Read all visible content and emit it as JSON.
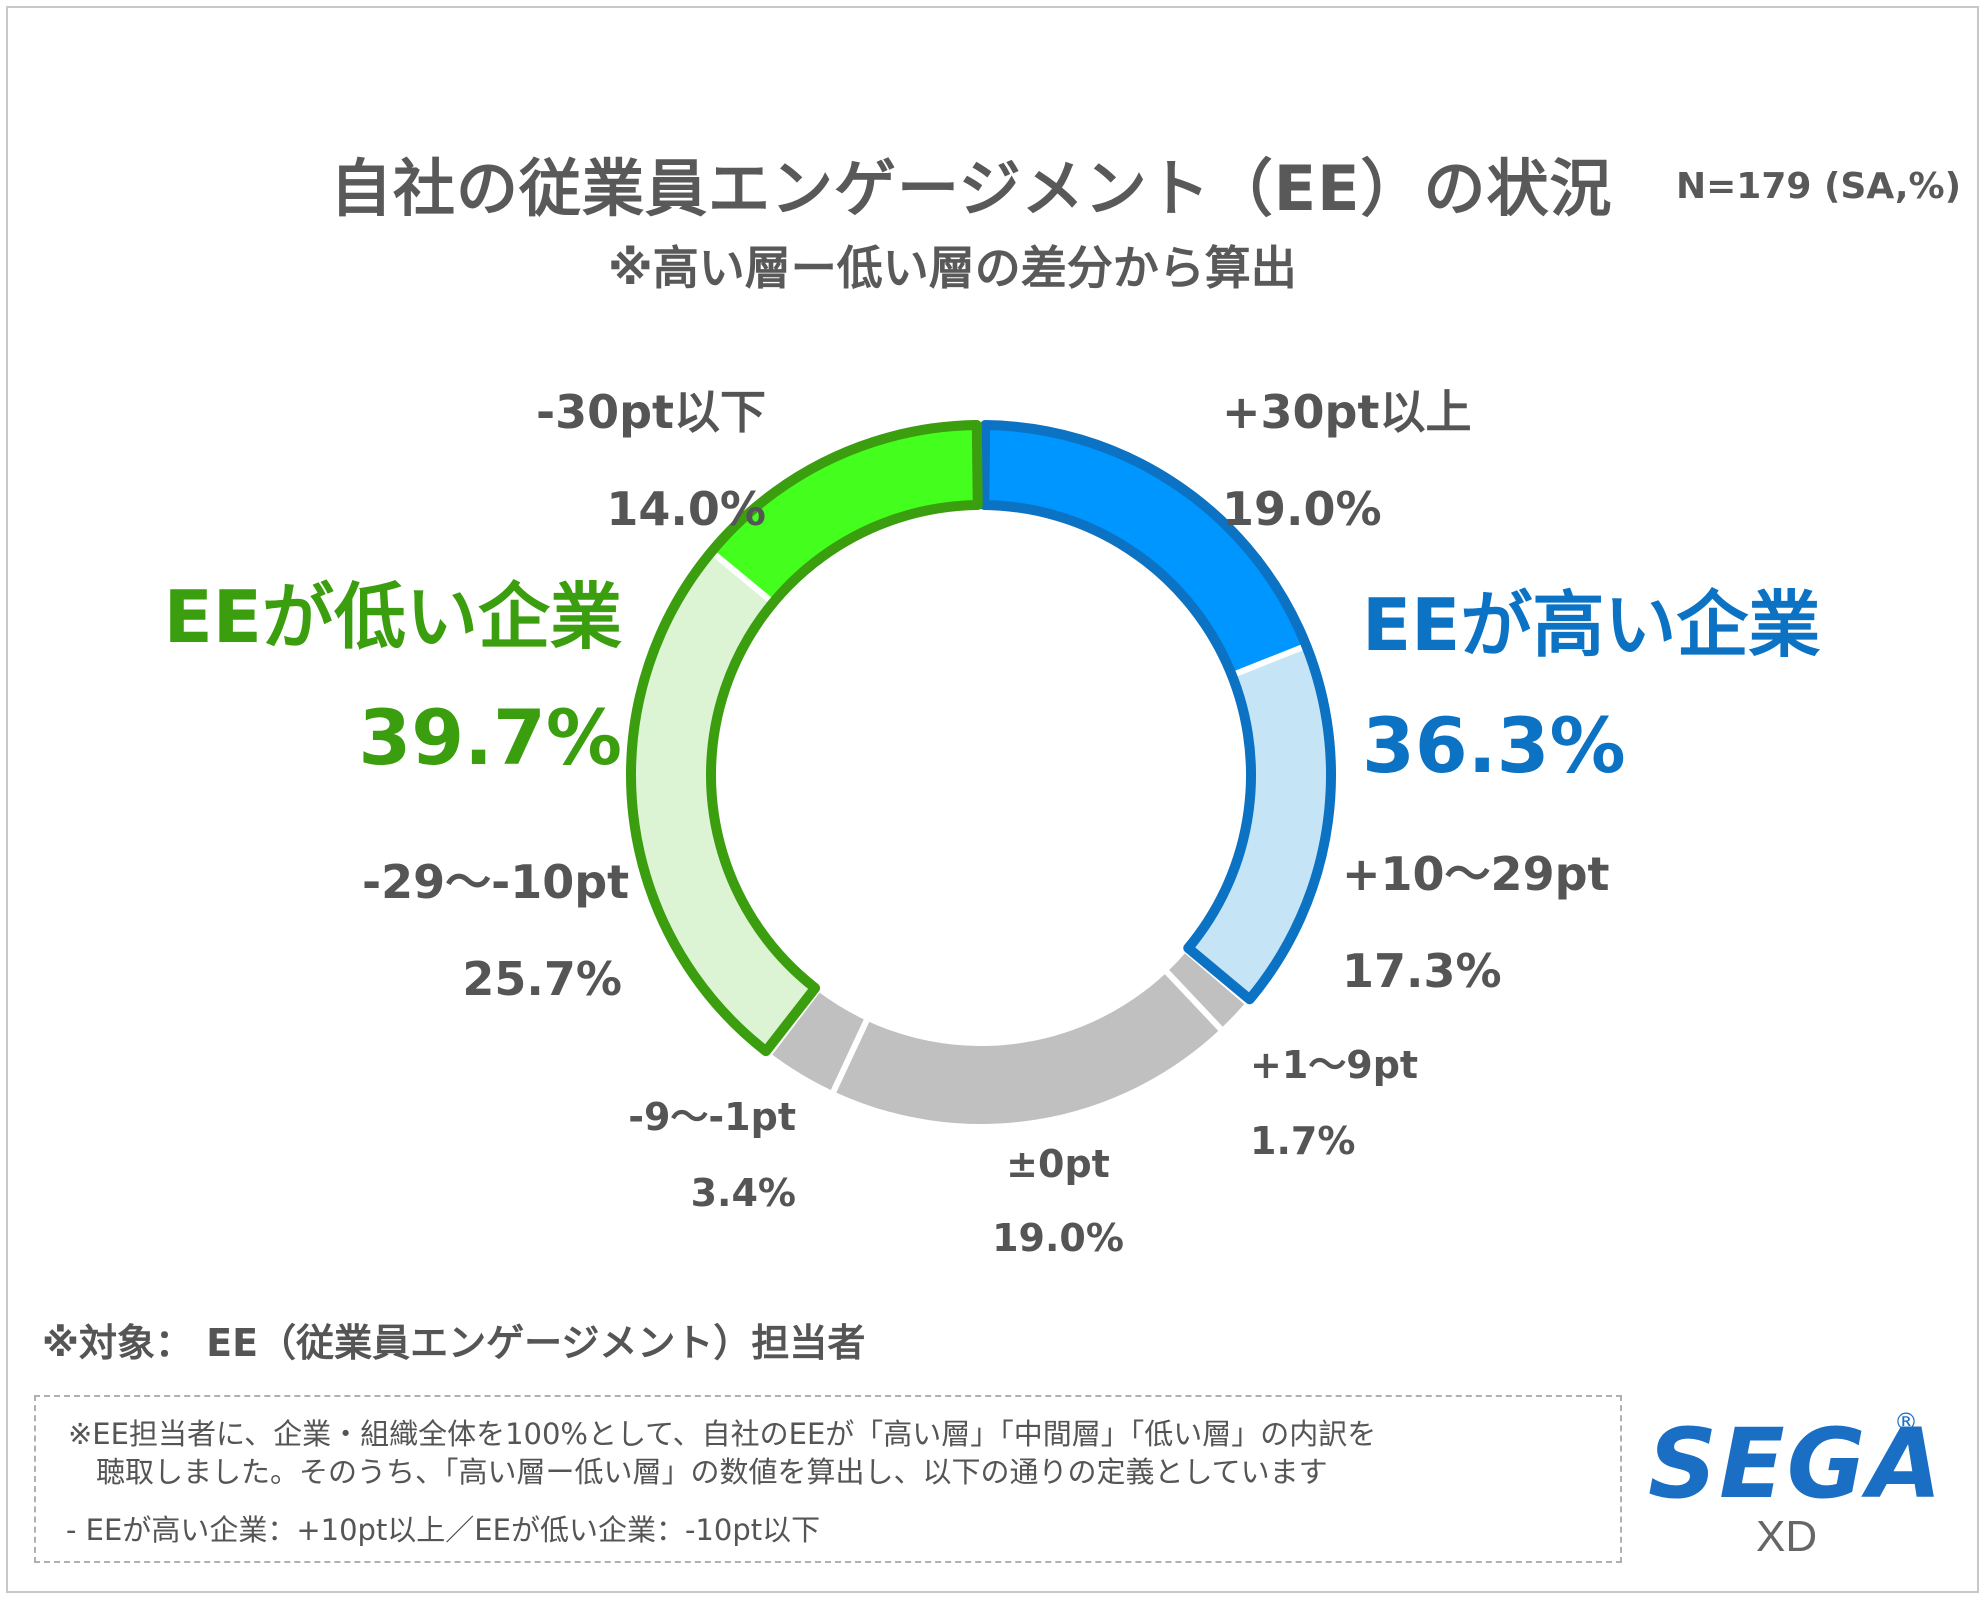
{
  "title": "自社の従業員エンゲージメント（EE）の状況",
  "sample_note": "N=179 (SA,%)",
  "subtitle": "※高い層ー低い層の差分から算出",
  "groups": {
    "low": {
      "label": "EEが低い企業",
      "value": "39.7%",
      "color": "#3a9e0f"
    },
    "high": {
      "label": "EEが高い企業",
      "value": "36.3%",
      "color": "#0b72c4"
    }
  },
  "chart_data": {
    "type": "pie",
    "variant": "donut",
    "start": "top",
    "direction": "clockwise",
    "slices": [
      {
        "label": "+30pt以上",
        "value": 19.0,
        "value_label": "19.0%",
        "color": "#0096ff"
      },
      {
        "label": "+10〜29pt",
        "value": 17.3,
        "value_label": "17.3%",
        "color": "#c5e5f6"
      },
      {
        "label": "+1〜9pt",
        "value": 1.7,
        "value_label": "1.7%",
        "color": "#c0c0c0"
      },
      {
        "label": "±0pt",
        "value": 19.0,
        "value_label": "19.0%",
        "color": "#c0c0c0"
      },
      {
        "label": "-9〜-1pt",
        "value": 3.4,
        "value_label": "3.4%",
        "color": "#c0c0c0"
      },
      {
        "label": "-29〜-10pt",
        "value": 25.7,
        "value_label": "25.7%",
        "color": "#ddf4d4"
      },
      {
        "label": "-30pt以下",
        "value": 14.0,
        "value_label": "14.0%",
        "color": "#44ff1e"
      }
    ],
    "groups": [
      {
        "label": "EEが高い企業",
        "slices": [
          "+30pt以上",
          "+10〜29pt"
        ],
        "outline_color": "#0b72c4"
      },
      {
        "label": "EEが低い企業",
        "slices": [
          "-29〜-10pt",
          "-30pt以下"
        ],
        "outline_color": "#3a9e0f"
      }
    ]
  },
  "target_note": "※対象： EE（従業員エンゲージメント）担当者",
  "notes": {
    "line1": "※EE担当者に、企業・組織全体を100%として、自社のEEが「高い層」「中間層」「低い層」の内訳を",
    "line2": "聴取しました。そのうち、「高い層ー低い層」の数値を算出し、以下の通りの定義としています",
    "line3": "- EEが高い企業：+10pt以上／EEが低い企業：-10pt以下"
  },
  "logo": {
    "name": "SEGA",
    "sub": "XD",
    "reg": "®"
  }
}
